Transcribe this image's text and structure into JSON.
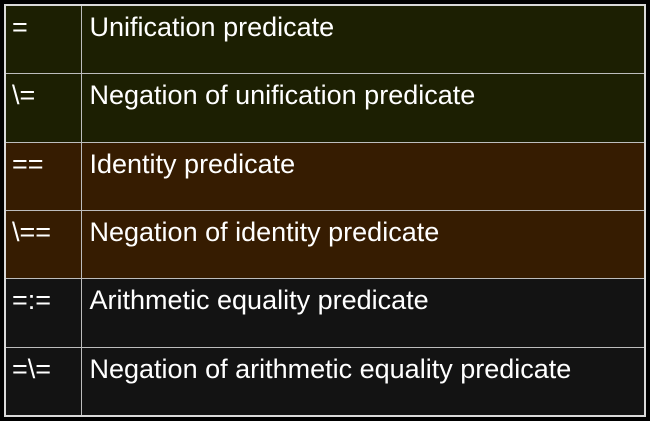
{
  "predicates": [
    {
      "operator": "=",
      "description": "Unification predicate",
      "bg": "#1c1f02"
    },
    {
      "operator": "\\=",
      "description": "Negation of unification predicate",
      "bg": "#1c1f02"
    },
    {
      "operator": "==",
      "description": "Identity predicate",
      "bg": "#361c01"
    },
    {
      "operator": "\\==",
      "description": "Negation of identity predicate",
      "bg": "#361c01"
    },
    {
      "operator": "=:=",
      "description": "Arithmetic equality predicate",
      "bg": "#131313"
    },
    {
      "operator": "=\\=",
      "description": "Negation of arithmetic equality predicate",
      "bg": "#131313"
    }
  ],
  "colors": {
    "text": "#ffffff",
    "border": "#d9d9d9",
    "group_unification": "#1c1f02",
    "group_identity": "#361c01",
    "group_arithmetic": "#131313"
  }
}
